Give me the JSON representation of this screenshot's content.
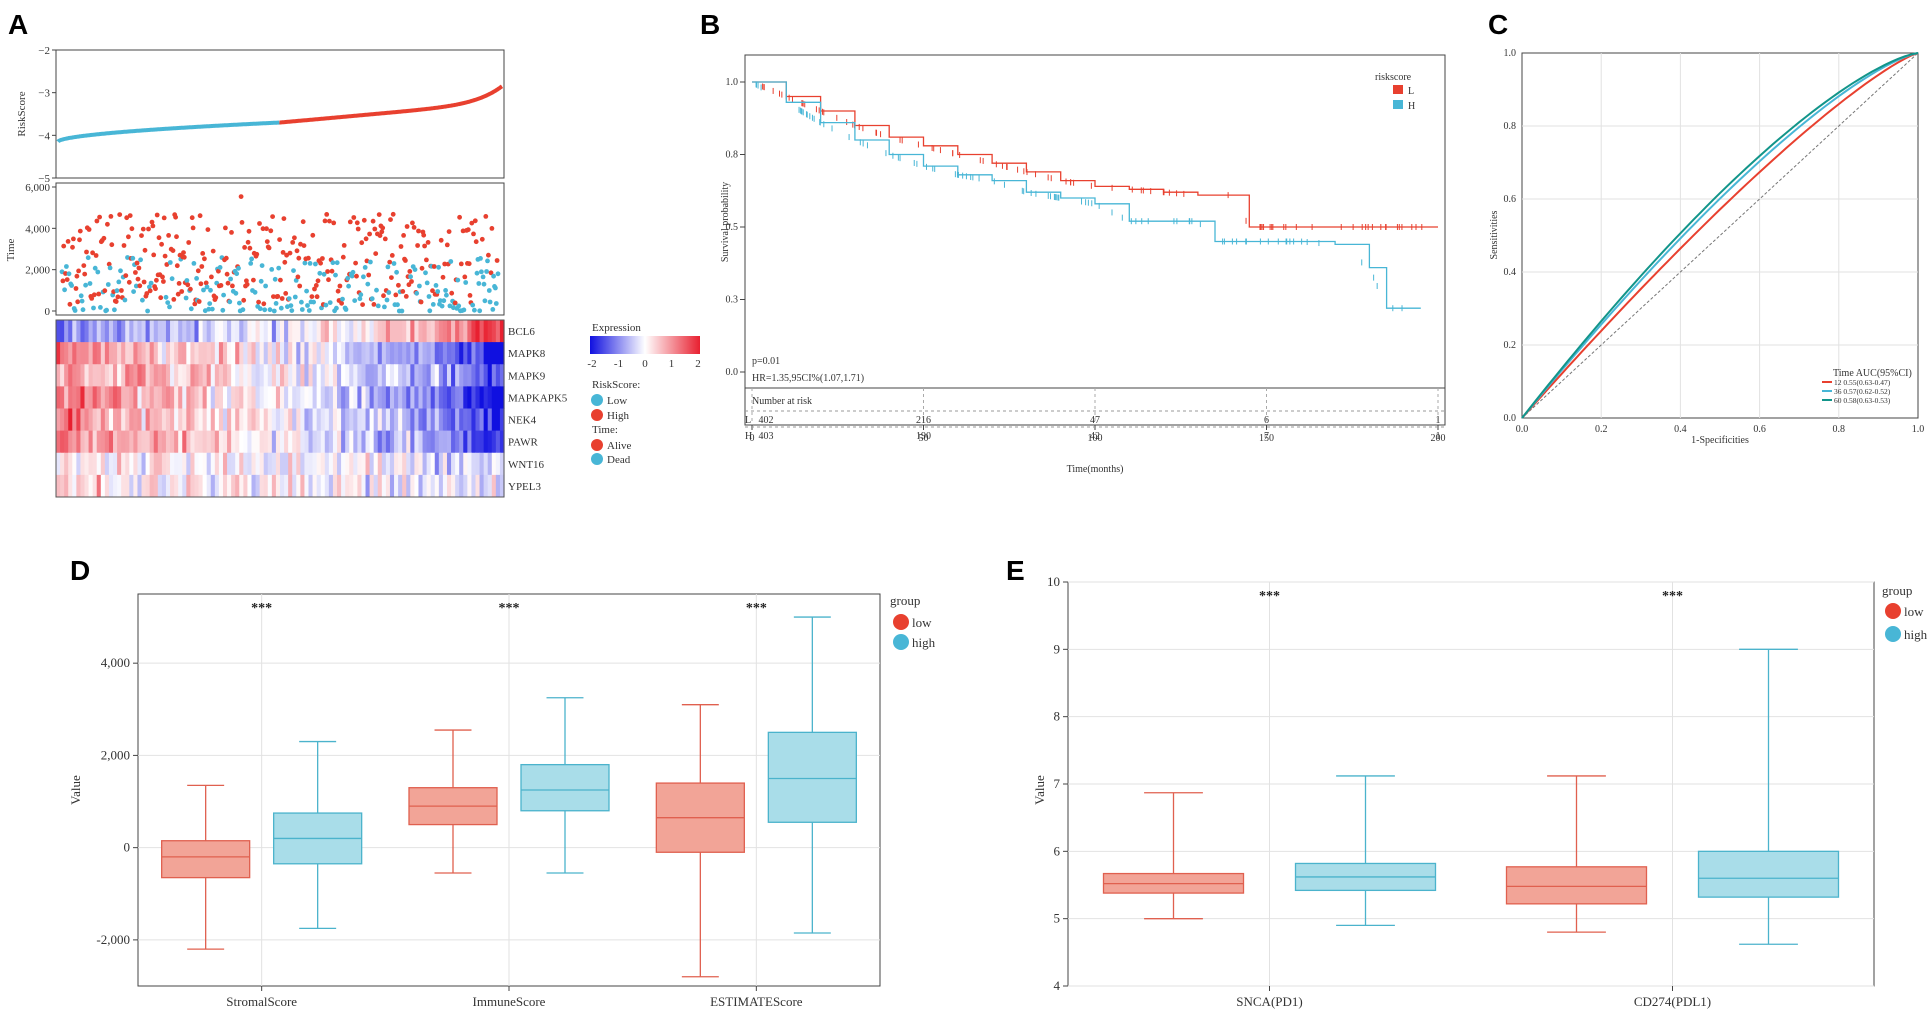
{
  "colors": {
    "red": "#e8402f",
    "blue": "#48b6d6",
    "red_fill": "#f2a497",
    "blue_fill": "#a9dde9",
    "red_line": "#e0604f",
    "blue_line": "#4bb3cc",
    "heat_low": "#1010e0",
    "heat_high": "#e82030"
  },
  "chart_data": [
    {
      "id": "A",
      "panel_label": "A",
      "type": "heatmap",
      "riskscore_panel": {
        "ylabel": "RiskScore",
        "y_ticks": [
          -2,
          -3,
          -4,
          -5
        ],
        "ylim": [
          -5,
          -2
        ],
        "n_low": 402,
        "n_high": 403,
        "low_start": -4.15,
        "low_end": -3.7,
        "high_end": -2.85
      },
      "time_panel": {
        "ylabel": "Time",
        "y_ticks": [
          "6,000",
          "4,000",
          "2,000",
          "0"
        ],
        "ylim": [
          0,
          6000
        ]
      },
      "genes": [
        "BCL6",
        "MAPK8",
        "MAPK9",
        "MAPKAPK5",
        "NEK4",
        "PAWR",
        "WNT16",
        "YPEL3"
      ],
      "gene_trend": [
        0.7,
        -0.75,
        -0.6,
        -0.85,
        -0.7,
        -0.75,
        -0.15,
        -0.1
      ],
      "legend": {
        "expression_title": "Expression",
        "expression_ticks": [
          "-2",
          "-1",
          "0",
          "1",
          "2"
        ],
        "riskscore_title": "RiskScore:",
        "riskscore_items": [
          {
            "label": "Low",
            "color": "#48b6d6"
          },
          {
            "label": "High",
            "color": "#e8402f"
          }
        ],
        "time_title": "Time:",
        "time_items": [
          {
            "label": "Alive",
            "color": "#e8402f"
          },
          {
            "label": "Dead",
            "color": "#48b6d6"
          }
        ]
      }
    },
    {
      "id": "B",
      "panel_label": "B",
      "type": "line",
      "title": "",
      "xlabel": "Time(months)",
      "ylabel": "Survival probability",
      "xlim": [
        0,
        200
      ],
      "ylim": [
        0,
        1
      ],
      "x_ticks": [
        0,
        50,
        100,
        150,
        200
      ],
      "y_ticks": [
        "0.0",
        "0.3",
        "0.5",
        "0.8",
        "1.0"
      ],
      "y_tick_values": [
        0.0,
        0.25,
        0.5,
        0.75,
        1.0
      ],
      "legend_title": "riskscore",
      "series": [
        {
          "name": "L",
          "color": "#e8402f",
          "x": [
            0,
            10,
            20,
            30,
            40,
            50,
            60,
            70,
            80,
            90,
            100,
            110,
            120,
            130,
            140,
            145,
            150,
            160,
            170,
            180,
            190,
            200
          ],
          "y": [
            1.0,
            0.95,
            0.9,
            0.85,
            0.81,
            0.78,
            0.75,
            0.72,
            0.69,
            0.66,
            0.64,
            0.63,
            0.62,
            0.61,
            0.61,
            0.5,
            0.5,
            0.5,
            0.5,
            0.5,
            0.5,
            0.5
          ]
        },
        {
          "name": "H",
          "color": "#48b6d6",
          "x": [
            0,
            10,
            20,
            30,
            40,
            50,
            60,
            70,
            80,
            90,
            100,
            110,
            120,
            130,
            135,
            140,
            150,
            160,
            170,
            180,
            185,
            195
          ],
          "y": [
            1.0,
            0.93,
            0.86,
            0.8,
            0.75,
            0.71,
            0.68,
            0.66,
            0.62,
            0.6,
            0.58,
            0.52,
            0.52,
            0.52,
            0.45,
            0.45,
            0.45,
            0.45,
            0.44,
            0.36,
            0.22,
            0.22
          ]
        }
      ],
      "annotations": {
        "p_value": "p=0.01",
        "hr": "HR=1.35,95CI%(1.07,1.71)"
      },
      "risk_table": {
        "title": "Number at risk",
        "rows": [
          {
            "label": "L",
            "color": "#e8402f",
            "values": [
              "402",
              "216",
              "47",
              "6",
              "1"
            ]
          },
          {
            "label": "H",
            "color": "#48b6d6",
            "values": [
              "403",
              "190",
              "42",
              "7",
              "1"
            ]
          }
        ]
      }
    },
    {
      "id": "C",
      "panel_label": "C",
      "type": "line",
      "xlabel": "1-Specificities",
      "ylabel": "Sensitivities",
      "xlim": [
        0,
        1
      ],
      "ylim": [
        0,
        1
      ],
      "x_ticks": [
        "0.0",
        "0.2",
        "0.4",
        "0.6",
        "0.8",
        "1.0"
      ],
      "y_ticks": [
        "0.0",
        "0.2",
        "0.4",
        "0.6",
        "0.8",
        "1.0"
      ],
      "legend_title": "Time AUC(95%CI)",
      "series": [
        {
          "name": "12 0.55(0.63-0.47)",
          "color": "#e8402f",
          "auc": 0.55
        },
        {
          "name": "36 0.57(0.62-0.52)",
          "color": "#48b6d6",
          "auc": 0.57
        },
        {
          "name": "60 0.58(0.63-0.53)",
          "color": "#12958a",
          "auc": 0.58
        }
      ]
    },
    {
      "id": "D",
      "panel_label": "D",
      "type": "box",
      "xlabel": "",
      "ylabel": "Value",
      "ylim": [
        -3000,
        5500
      ],
      "y_ticks": [
        -2000,
        0,
        2000,
        4000
      ],
      "y_tick_labels": [
        "-2,000",
        "0",
        "2,000",
        "4,000"
      ],
      "categories": [
        "StromalScore",
        "ImmuneScore",
        "ESTIMATEScore"
      ],
      "significance": [
        "***",
        "***",
        "***"
      ],
      "legend_title": "group",
      "series": [
        {
          "name": "low",
          "color": "#e8402f",
          "stats": [
            [
              -2200,
              -650,
              -200,
              150,
              1350
            ],
            [
              -550,
              500,
              900,
              1300,
              2550
            ],
            [
              -2800,
              -100,
              650,
              1400,
              3100
            ]
          ]
        },
        {
          "name": "high",
          "color": "#48b6d6",
          "stats": [
            [
              -1750,
              -350,
              200,
              750,
              2300
            ],
            [
              -550,
              800,
              1250,
              1800,
              3250
            ],
            [
              -1850,
              550,
              1500,
              2500,
              5000
            ]
          ]
        }
      ]
    },
    {
      "id": "E",
      "panel_label": "E",
      "type": "box",
      "xlabel": "",
      "ylabel": "Value",
      "ylim": [
        4,
        10
      ],
      "y_ticks": [
        4,
        5,
        6,
        7,
        8,
        9,
        10
      ],
      "y_tick_labels": [
        "4",
        "5",
        "6",
        "7",
        "8",
        "9",
        "10"
      ],
      "categories": [
        "SNCA(PD1)",
        "CD274(PDL1)"
      ],
      "significance": [
        "***",
        "***"
      ],
      "legend_title": "group",
      "series": [
        {
          "name": "low",
          "color": "#e8402f",
          "stats": [
            [
              5.0,
              5.38,
              5.52,
              5.67,
              6.87
            ],
            [
              4.8,
              5.22,
              5.48,
              5.77,
              7.12
            ]
          ]
        },
        {
          "name": "high",
          "color": "#48b6d6",
          "stats": [
            [
              4.9,
              5.42,
              5.62,
              5.82,
              7.12
            ],
            [
              4.62,
              5.32,
              5.6,
              6.0,
              9.0
            ]
          ]
        }
      ]
    }
  ]
}
